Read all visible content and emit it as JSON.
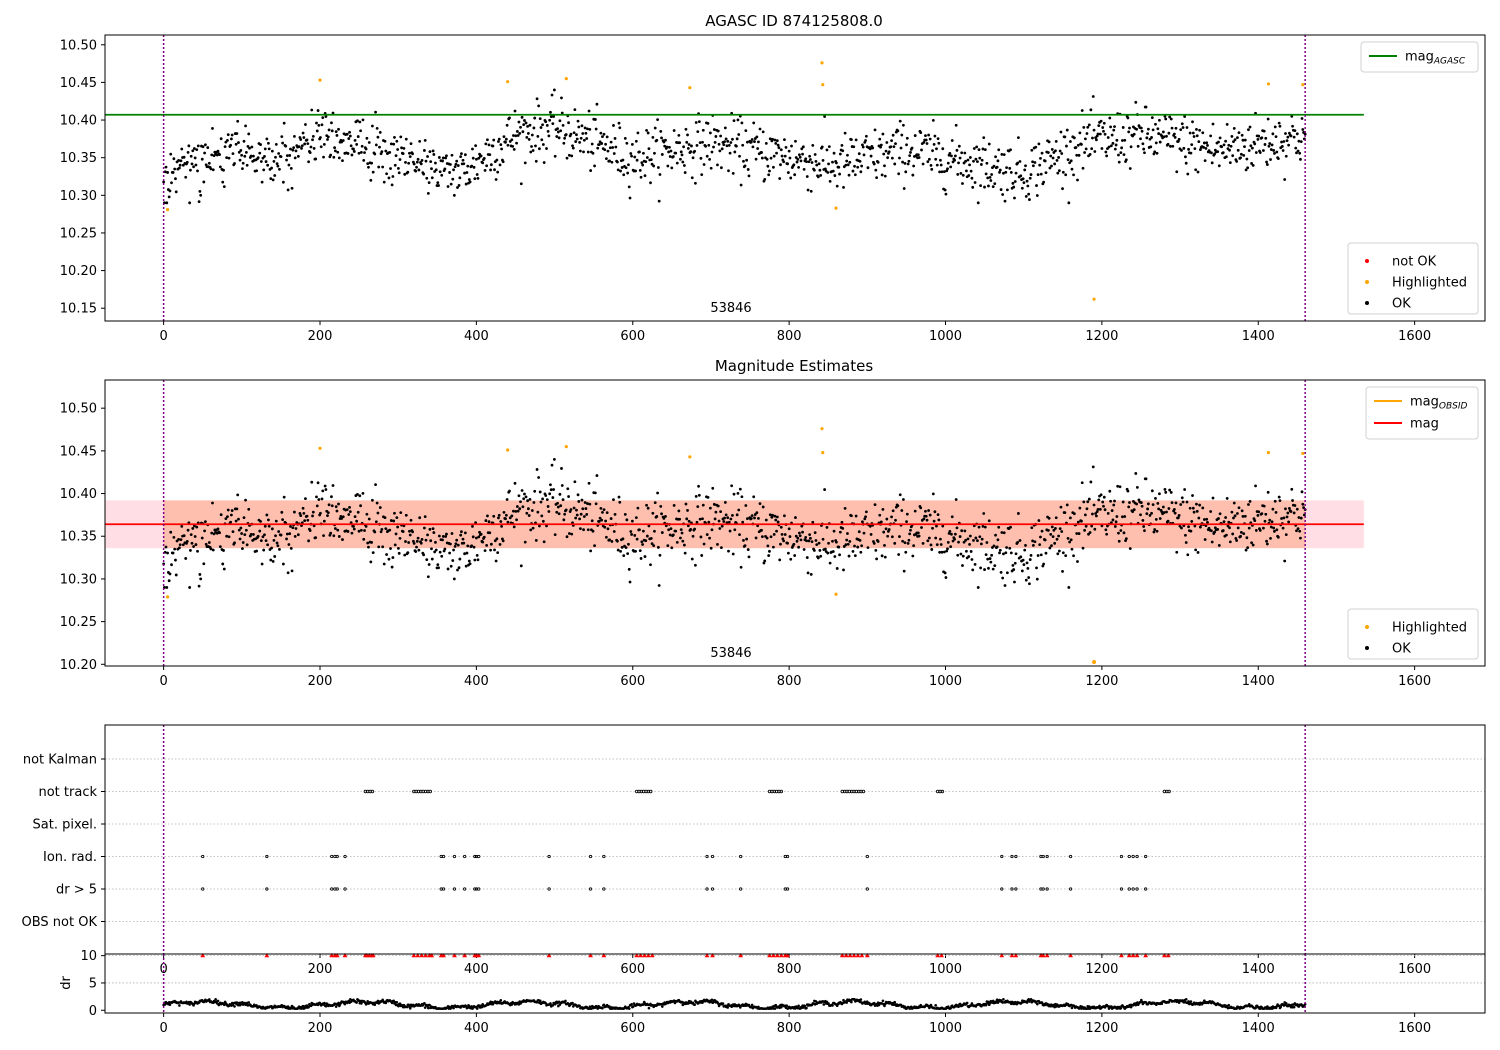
{
  "chart_data": [
    {
      "type": "scatter",
      "title": "AGASC ID 874125808.0",
      "annotation": "53846",
      "xlim": [
        -75,
        1690
      ],
      "ylim": [
        10.133,
        10.513
      ],
      "xticks": [
        0,
        200,
        400,
        600,
        800,
        1000,
        1200,
        1400,
        1600
      ],
      "yticks": [
        10.15,
        10.2,
        10.25,
        10.3,
        10.35,
        10.4,
        10.45,
        10.5
      ],
      "ytick_labels": [
        "10.15",
        "10.20",
        "10.25",
        "10.30",
        "10.35",
        "10.40",
        "10.45",
        "10.50"
      ],
      "legend_top": [
        {
          "base": "mag",
          "sub": "AGASC",
          "color": "#008000",
          "marker": "line"
        }
      ],
      "legend_bottom": [
        {
          "label": "not OK",
          "color": "#ff0000",
          "marker": "dot"
        },
        {
          "label": "Highlighted",
          "color": "#ffa500",
          "marker": "dot"
        },
        {
          "label": "OK",
          "color": "#000000",
          "marker": "dot"
        }
      ],
      "reference_lines": [
        {
          "name": "mag_AGASC",
          "y": 10.407,
          "x_range": [
            -75,
            1535
          ],
          "color": "#008000"
        }
      ],
      "vlines": [
        {
          "x": 0,
          "color": "#800080"
        },
        {
          "x": 1460,
          "color": "#800080"
        }
      ],
      "series": [
        {
          "name": "OK",
          "color": "#000000",
          "n_points": 1450,
          "x_range": [
            0,
            1460
          ],
          "typical_y_range": [
            10.29,
            10.44
          ],
          "trend_knots_x": [
            0,
            80,
            150,
            200,
            300,
            380,
            450,
            500,
            600,
            700,
            800,
            860,
            950,
            1050,
            1100,
            1180,
            1250,
            1350,
            1460
          ],
          "trend_knots_y": [
            10.32,
            10.36,
            10.35,
            10.38,
            10.35,
            10.33,
            10.38,
            10.39,
            10.35,
            10.37,
            10.35,
            10.34,
            10.36,
            10.34,
            10.33,
            10.37,
            10.38,
            10.36,
            10.38
          ]
        },
        {
          "name": "Highlighted",
          "color": "#ffa500",
          "points": [
            [
              5,
              10.281
            ],
            [
              200,
              10.453
            ],
            [
              440,
              10.451
            ],
            [
              515,
              10.455
            ],
            [
              673,
              10.443
            ],
            [
              842,
              10.476
            ],
            [
              843,
              10.447
            ],
            [
              860,
              10.283
            ],
            [
              1190,
              10.162
            ],
            [
              1413,
              10.448
            ],
            [
              1457,
              10.447
            ]
          ]
        }
      ]
    },
    {
      "type": "scatter",
      "title": "Magnitude Estimates",
      "annotation": "53846",
      "xlim": [
        -75,
        1690
      ],
      "ylim": [
        10.198,
        10.533
      ],
      "xticks": [
        0,
        200,
        400,
        600,
        800,
        1000,
        1200,
        1400,
        1600
      ],
      "yticks": [
        10.2,
        10.25,
        10.3,
        10.35,
        10.4,
        10.45,
        10.5
      ],
      "ytick_labels": [
        "10.20",
        "10.25",
        "10.30",
        "10.35",
        "10.40",
        "10.45",
        "10.50"
      ],
      "legend_top": [
        {
          "base": "mag",
          "sub": "OBSID",
          "color": "#ffa500",
          "marker": "line"
        },
        {
          "base": "mag",
          "sub": "",
          "color": "#ff0000",
          "marker": "line"
        }
      ],
      "legend_bottom": [
        {
          "label": "Highlighted",
          "color": "#ffa500",
          "marker": "dot"
        },
        {
          "label": "OK",
          "color": "#000000",
          "marker": "dot"
        }
      ],
      "reference_lines": [
        {
          "name": "mag",
          "y": 10.364,
          "x_range": [
            -75,
            1535
          ],
          "color": "#ff0000"
        }
      ],
      "bands": [
        {
          "name": "mag band",
          "y_range": [
            10.336,
            10.392
          ],
          "x_range": [
            -75,
            1535
          ],
          "color": "#ffc0cb"
        },
        {
          "name": "mag_OBSID band",
          "y_range": [
            10.336,
            10.392
          ],
          "x_range": [
            0,
            1460
          ],
          "color": "#ffa07a"
        }
      ],
      "vlines": [
        {
          "x": 0,
          "color": "#800080"
        },
        {
          "x": 1460,
          "color": "#800080"
        }
      ],
      "series": [
        {
          "name": "OK",
          "color": "#000000",
          "same_as_panel": 0
        },
        {
          "name": "Highlighted",
          "color": "#ffa500",
          "points": [
            [
              5,
              10.279
            ],
            [
              200,
              10.453
            ],
            [
              440,
              10.451
            ],
            [
              515,
              10.455
            ],
            [
              673,
              10.443
            ],
            [
              842,
              10.476
            ],
            [
              843,
              10.448
            ],
            [
              860,
              10.282
            ],
            [
              1190,
              10.203
            ],
            [
              1413,
              10.448
            ],
            [
              1457,
              10.447
            ]
          ]
        }
      ]
    },
    {
      "type": "scatter",
      "title": "",
      "xlim": [
        -75,
        1690
      ],
      "xticks": [
        0,
        200,
        400,
        600,
        800,
        1000,
        1200,
        1400,
        1600
      ],
      "flag_rows": [
        "not Kalman",
        "not track",
        "Sat. pixel.",
        "Ion. rad.",
        "dr > 5",
        "OBS not OK"
      ],
      "flags": {
        "not Kalman": [],
        "not track": [
          [
            258,
            268
          ],
          [
            320,
            343
          ],
          [
            605,
            625
          ],
          [
            775,
            790
          ],
          [
            868,
            895
          ],
          [
            990,
            998
          ],
          [
            1280,
            1288
          ]
        ],
        "Sat. pixel.": [],
        "Ion. rad.": [
          50,
          132,
          215,
          219,
          222,
          232,
          355,
          358,
          372,
          385,
          398,
          400,
          403,
          493,
          546,
          563,
          695,
          702,
          738,
          795,
          798,
          900,
          1072,
          1085,
          1090,
          1122,
          1125,
          1130,
          1160,
          1225,
          1235,
          1240,
          1245,
          1256
        ],
        "dr > 5": [
          50,
          132,
          215,
          219,
          222,
          232,
          355,
          358,
          372,
          385,
          398,
          400,
          403,
          493,
          546,
          563,
          695,
          702,
          738,
          795,
          798,
          900,
          1072,
          1085,
          1090,
          1122,
          1125,
          1130,
          1160,
          1225,
          1235,
          1240,
          1245,
          1256
        ],
        "OBS not OK": []
      },
      "vlines": [
        {
          "x": 0,
          "color": "#800080"
        },
        {
          "x": 1460,
          "color": "#800080"
        }
      ]
    },
    {
      "type": "scatter",
      "title": "",
      "ylabel": "dr",
      "xlim": [
        -75,
        1690
      ],
      "ylim": [
        -0.5,
        10.3
      ],
      "xticks": [
        0,
        200,
        400,
        600,
        800,
        1000,
        1200,
        1400,
        1600
      ],
      "yticks": [
        0,
        5,
        10
      ],
      "ytick_labels": [
        "0",
        "5",
        "10"
      ],
      "series": [
        {
          "name": "dr",
          "color": "#000000",
          "x_range": [
            0,
            1460
          ],
          "typical_y_range": [
            0.3,
            2.0
          ]
        },
        {
          "name": "dr clipped",
          "color": "#ff0000",
          "marker": "triangle",
          "y": 10,
          "x": [
            50,
            132,
            215,
            219,
            222,
            232,
            258,
            260,
            263,
            266,
            268,
            320,
            325,
            330,
            335,
            340,
            343,
            355,
            358,
            372,
            385,
            398,
            400,
            403,
            493,
            546,
            563,
            605,
            610,
            615,
            620,
            625,
            695,
            702,
            738,
            775,
            780,
            785,
            790,
            795,
            798,
            868,
            873,
            878,
            883,
            888,
            893,
            900,
            990,
            995,
            1072,
            1085,
            1090,
            1122,
            1125,
            1130,
            1160,
            1225,
            1235,
            1240,
            1245,
            1256,
            1280,
            1285
          ]
        }
      ],
      "vlines": [
        {
          "x": 0,
          "color": "#800080"
        },
        {
          "x": 1460,
          "color": "#800080"
        }
      ]
    }
  ]
}
